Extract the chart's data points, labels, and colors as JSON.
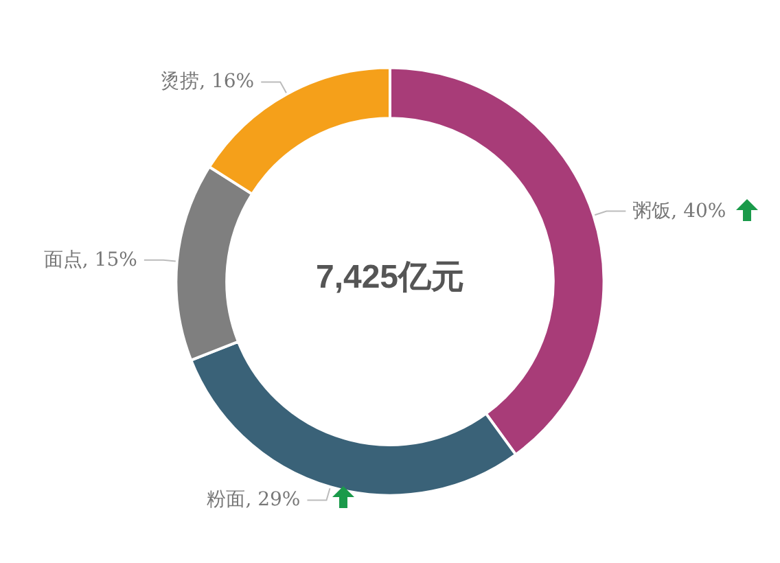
{
  "chart_data": {
    "type": "donut",
    "categories": [
      "粥饭",
      "粉面",
      "面点",
      "烫捞"
    ],
    "values": [
      40,
      29,
      15,
      16
    ],
    "value_labels": [
      "40%",
      "29%",
      "15%",
      "16%"
    ],
    "colors": [
      "#a83c78",
      "#3a6278",
      "#7f7f7f",
      "#f5a01a"
    ],
    "annotations": [
      "7,425亿元"
    ],
    "legend": false
  }
}
